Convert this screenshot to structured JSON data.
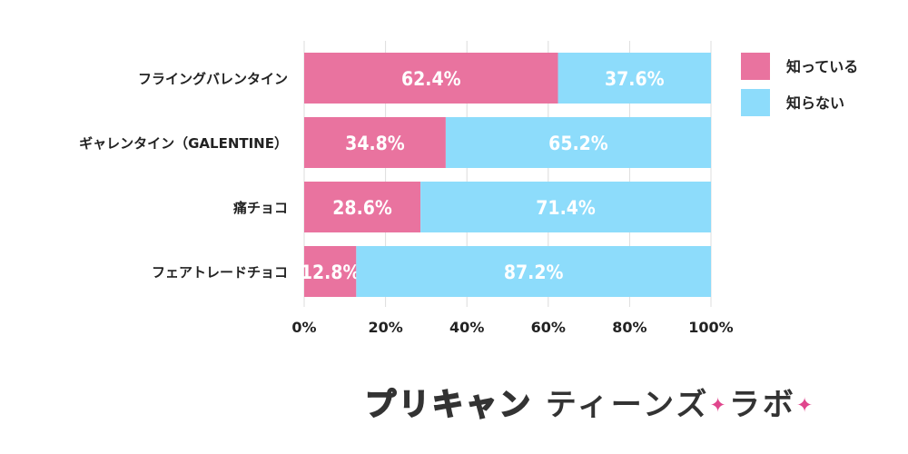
{
  "chart_data": {
    "type": "bar",
    "orientation": "horizontal",
    "stacked": true,
    "categories": [
      "フライングバレンタイン",
      "ギャレンタイン（GALENTINE）",
      "痛チョコ",
      "フェアトレードチョコ"
    ],
    "series": [
      {
        "name": "知っている",
        "values": [
          62.4,
          34.8,
          28.6,
          12.8
        ],
        "labels": [
          "62.4%",
          "34.8%",
          "28.6%",
          "12.8%"
        ],
        "color": "#e9739f"
      },
      {
        "name": "知らない",
        "values": [
          37.6,
          65.2,
          71.4,
          87.2
        ],
        "labels": [
          "37.6%",
          "65.2%",
          "71.4%",
          "87.2%"
        ],
        "color": "#8ddcfb"
      }
    ],
    "xlim": [
      0,
      100
    ],
    "xticks": [
      "0%",
      "20%",
      "40%",
      "60%",
      "80%",
      "100%"
    ],
    "grid": "vertical",
    "legend_position": "top-right"
  },
  "logo": {
    "part1": "プリキャン",
    "part2": "ティーンズ",
    "part3": "ラボ"
  }
}
